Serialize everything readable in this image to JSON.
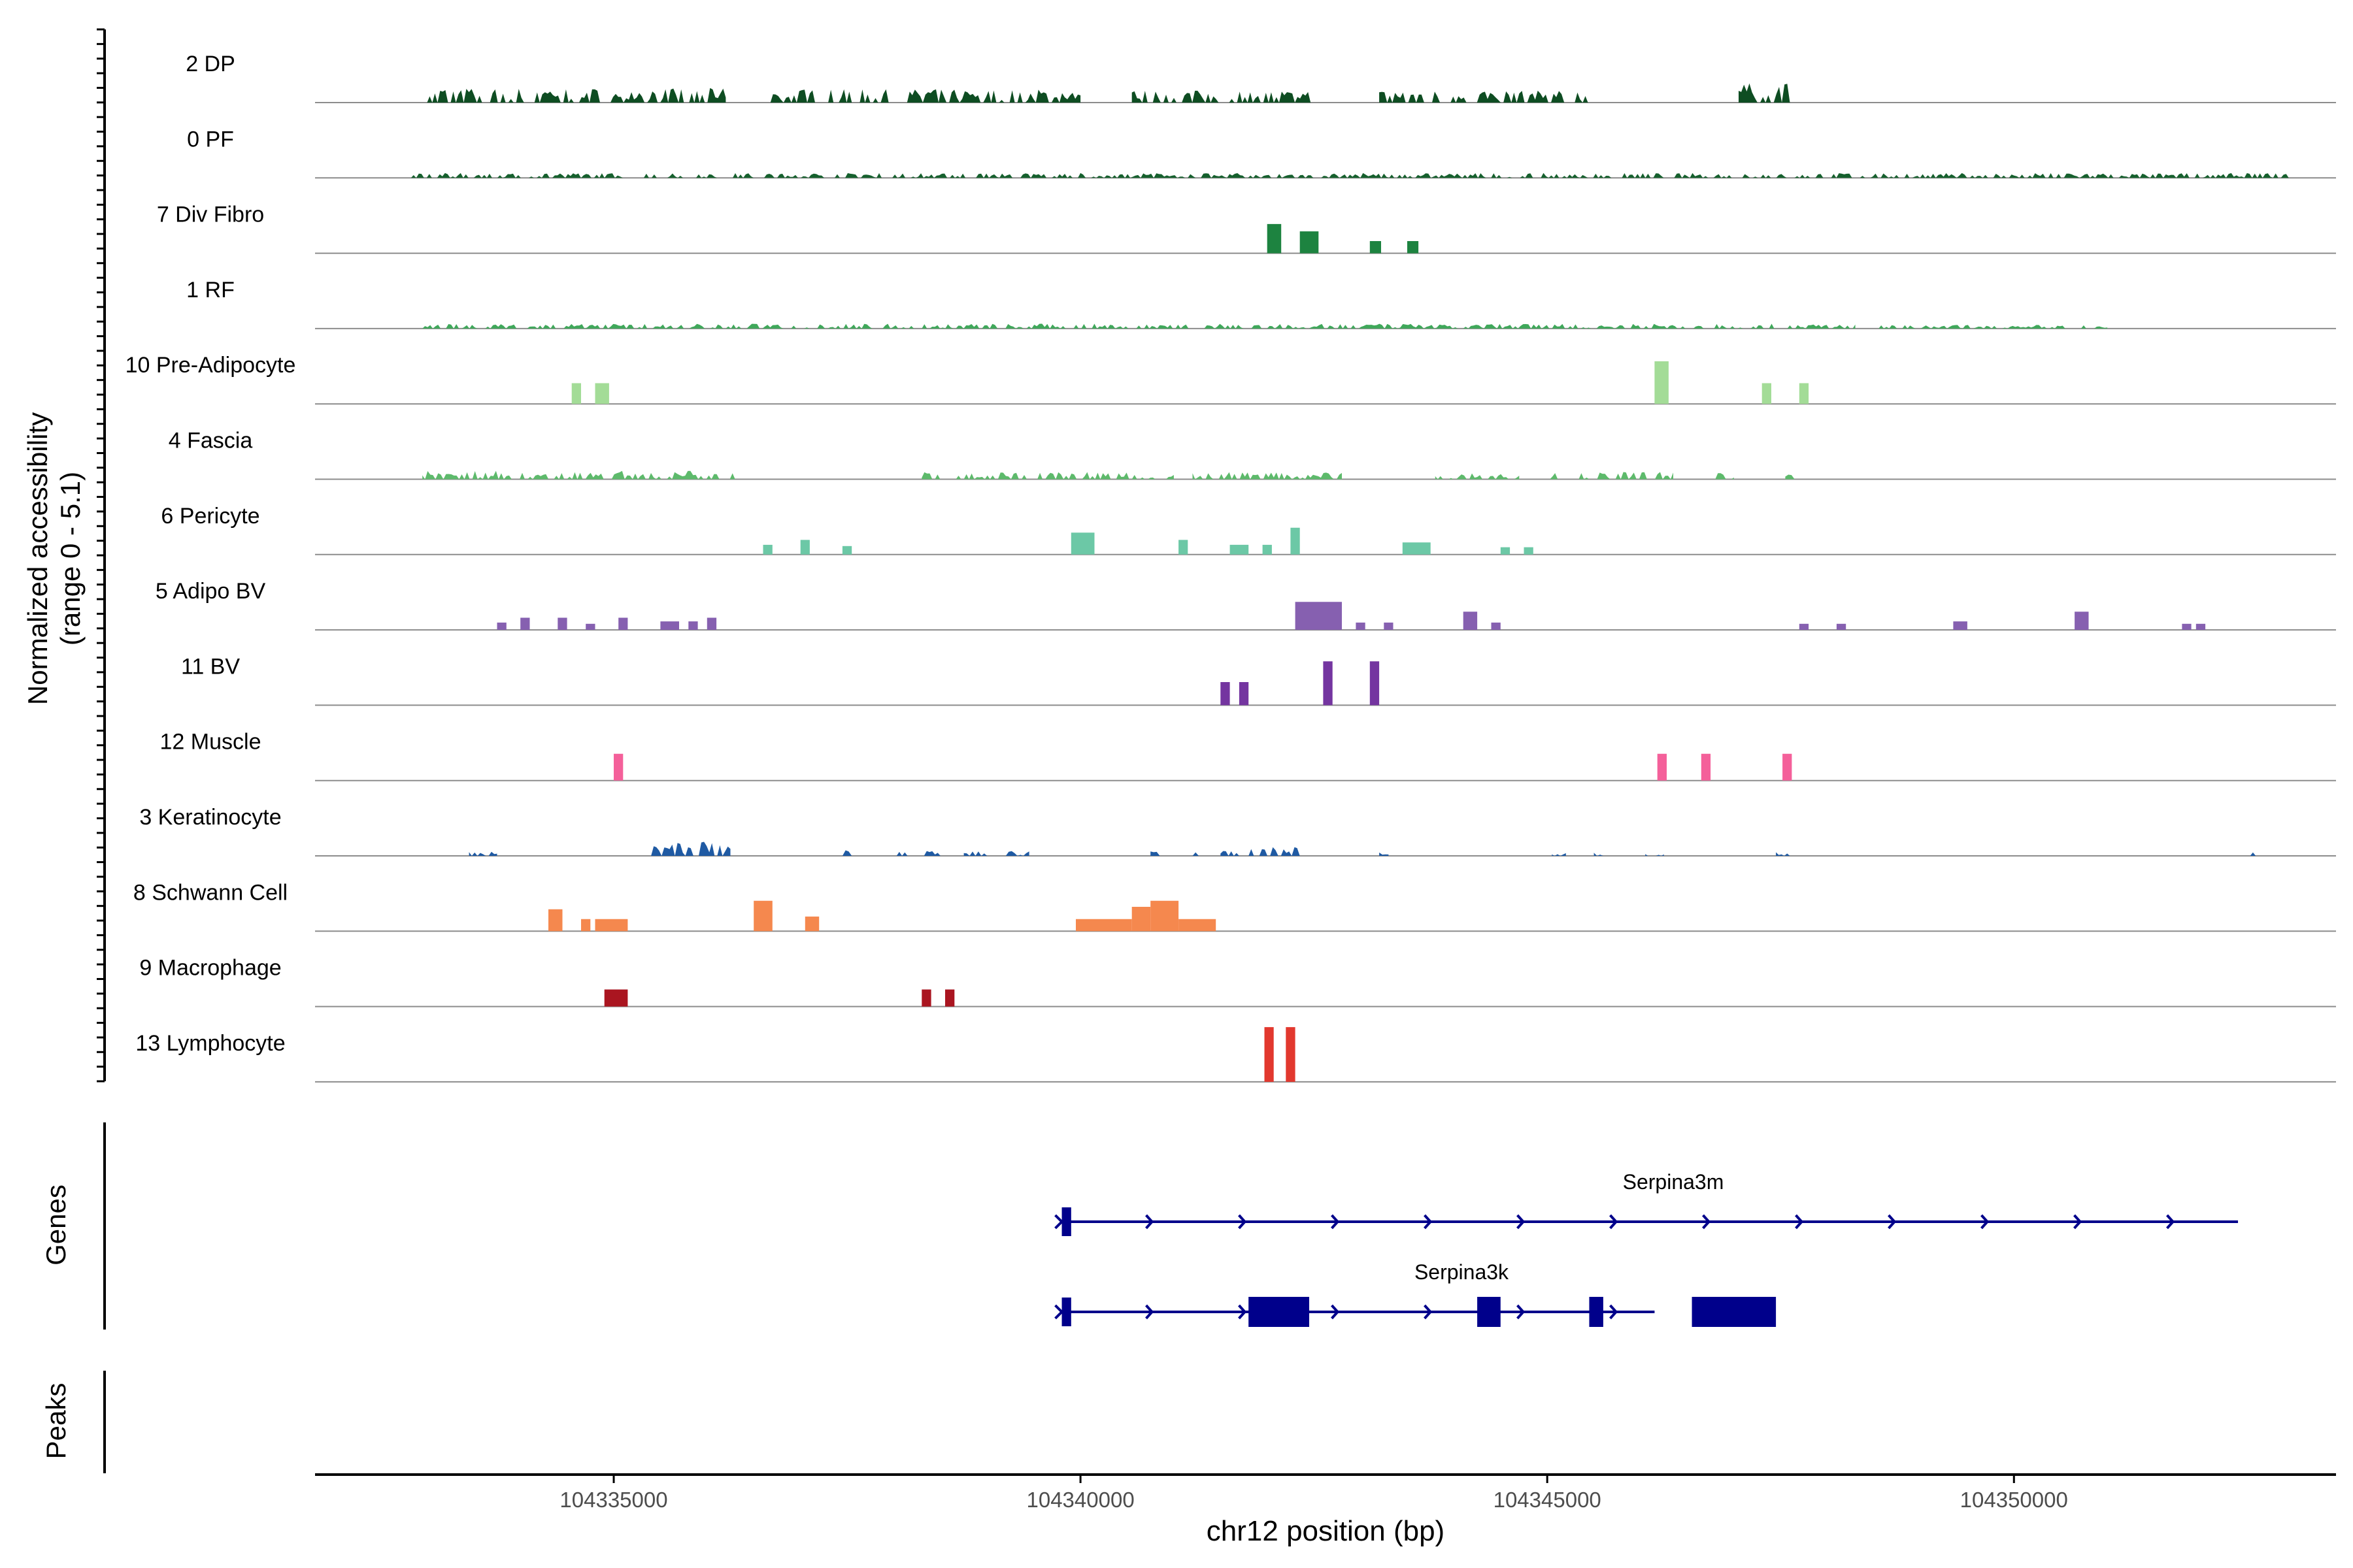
{
  "chart_data": {
    "type": "area",
    "title": "",
    "chromosome": "chr12",
    "xlabel": "chr12 position (bp)",
    "ylabel_line1": "Normalized accessibility",
    "ylabel_line2": "(range 0 - 5.1)",
    "y_range": [
      0,
      5.1
    ],
    "x_range": [
      104331800,
      104353450
    ],
    "x_ticks": [
      104335000,
      104340000,
      104345000,
      104350000
    ],
    "x_tick_labels": [
      "104335000",
      "104340000",
      "104345000",
      "104350000"
    ],
    "panel_labels": {
      "genes": "Genes",
      "peaks": "Peaks"
    },
    "tracks": [
      {
        "name": "2 DP",
        "color": "#0e4d22",
        "kind": "dense",
        "segments": [
          [
            104333000,
            104336200,
            1.2
          ],
          [
            104336650,
            104340000,
            1.1
          ],
          [
            104340550,
            104342550,
            1.0
          ],
          [
            104343200,
            104345550,
            1.0
          ],
          [
            104347050,
            104347600,
            1.6
          ]
        ]
      },
      {
        "name": "0 PF",
        "color": "#15602d",
        "kind": "dense",
        "segments": [
          [
            104332800,
            104353000,
            0.4
          ]
        ]
      },
      {
        "name": "7 Div Fibro",
        "color": "#1d8340",
        "kind": "bars",
        "segments": [
          [
            104342000,
            104342150,
            2.4
          ],
          [
            104342350,
            104342550,
            1.8
          ],
          [
            104343100,
            104343220,
            1.0
          ],
          [
            104343500,
            104343620,
            1.0
          ]
        ]
      },
      {
        "name": "1 RF",
        "color": "#3fa85a",
        "kind": "dense",
        "segments": [
          [
            104332950,
            104348300,
            0.4
          ],
          [
            104348550,
            104351000,
            0.3
          ]
        ]
      },
      {
        "name": "10 Pre-Adipocyte",
        "color": "#a3dc97",
        "kind": "bars",
        "segments": [
          [
            104334550,
            104334650,
            1.7
          ],
          [
            104334800,
            104334950,
            1.7
          ],
          [
            104346150,
            104346300,
            3.5
          ],
          [
            104347300,
            104347400,
            1.7
          ],
          [
            104347700,
            104347800,
            1.7
          ]
        ]
      },
      {
        "name": "4 Fascia",
        "color": "#5dba6b",
        "kind": "dense",
        "segments": [
          [
            104332950,
            104336300,
            0.7
          ],
          [
            104338300,
            104341000,
            0.6
          ],
          [
            104341200,
            104342800,
            0.6
          ],
          [
            104343800,
            104344700,
            0.5
          ],
          [
            104345000,
            104346350,
            0.6
          ],
          [
            104346800,
            104347000,
            0.5
          ],
          [
            104347550,
            104347650,
            0.5
          ]
        ]
      },
      {
        "name": "6 Pericyte",
        "color": "#6cc8a6",
        "kind": "bars",
        "segments": [
          [
            104336600,
            104336700,
            0.8
          ],
          [
            104337000,
            104337100,
            1.2
          ],
          [
            104337450,
            104337550,
            0.7
          ],
          [
            104339900,
            104340150,
            1.8
          ],
          [
            104341050,
            104341150,
            1.2
          ],
          [
            104341600,
            104341800,
            0.8
          ],
          [
            104341950,
            104342050,
            0.8
          ],
          [
            104342250,
            104342350,
            2.2
          ],
          [
            104343450,
            104343750,
            1.0
          ],
          [
            104344500,
            104344600,
            0.6
          ],
          [
            104344750,
            104344850,
            0.6
          ]
        ]
      },
      {
        "name": "5 Adipo BV",
        "color": "#8660b0",
        "kind": "bars",
        "segments": [
          [
            104333750,
            104333850,
            0.6
          ],
          [
            104334000,
            104334100,
            1.0
          ],
          [
            104334400,
            104334500,
            1.0
          ],
          [
            104334700,
            104334800,
            0.5
          ],
          [
            104335050,
            104335150,
            1.0
          ],
          [
            104335500,
            104335700,
            0.7
          ],
          [
            104335800,
            104335900,
            0.7
          ],
          [
            104336000,
            104336100,
            1.0
          ],
          [
            104342300,
            104342800,
            2.3
          ],
          [
            104342950,
            104343050,
            0.6
          ],
          [
            104343250,
            104343350,
            0.6
          ],
          [
            104344100,
            104344250,
            1.5
          ],
          [
            104344400,
            104344500,
            0.6
          ],
          [
            104347700,
            104347800,
            0.5
          ],
          [
            104348100,
            104348200,
            0.5
          ],
          [
            104349350,
            104349500,
            0.7
          ],
          [
            104350650,
            104350800,
            1.5
          ],
          [
            104351800,
            104351900,
            0.5
          ],
          [
            104351950,
            104352050,
            0.5
          ]
        ]
      },
      {
        "name": "11 BV",
        "color": "#7435a0",
        "kind": "bars",
        "segments": [
          [
            104341500,
            104341600,
            1.9
          ],
          [
            104341700,
            104341800,
            1.9
          ],
          [
            104342600,
            104342700,
            3.6
          ],
          [
            104343100,
            104343200,
            3.6
          ]
        ]
      },
      {
        "name": "12 Muscle",
        "color": "#f4609a",
        "kind": "bars",
        "segments": [
          [
            104335000,
            104335100,
            2.2
          ],
          [
            104346180,
            104346280,
            2.2
          ],
          [
            104346650,
            104346750,
            2.2
          ],
          [
            104347520,
            104347620,
            2.2
          ]
        ]
      },
      {
        "name": "3 Keratinocyte",
        "color": "#1f5aa3",
        "kind": "dense",
        "segments": [
          [
            104333000,
            104333150,
            0.4
          ],
          [
            104333450,
            104333750,
            0.4
          ],
          [
            104335400,
            104336250,
            1.2
          ],
          [
            104337450,
            104337550,
            0.5
          ],
          [
            104338000,
            104338500,
            0.4
          ],
          [
            104338750,
            104339000,
            0.4
          ],
          [
            104339200,
            104339450,
            0.4
          ],
          [
            104340750,
            104340850,
            0.5
          ],
          [
            104341200,
            104341300,
            0.4
          ],
          [
            104341500,
            104341700,
            0.4
          ],
          [
            104341800,
            104342350,
            0.8
          ],
          [
            104343200,
            104343300,
            0.3
          ],
          [
            104345050,
            104345200,
            0.3
          ],
          [
            104345500,
            104345600,
            0.3
          ],
          [
            104346050,
            104346250,
            0.3
          ],
          [
            104347450,
            104347600,
            0.3
          ],
          [
            104352500,
            104352650,
            0.3
          ]
        ]
      },
      {
        "name": "8 Schwann Cell",
        "color": "#f5884e",
        "kind": "bars",
        "segments": [
          [
            104334300,
            104334450,
            1.8
          ],
          [
            104334650,
            104334750,
            1.0
          ],
          [
            104334800,
            104335150,
            1.0
          ],
          [
            104336500,
            104336700,
            2.5
          ],
          [
            104337050,
            104337200,
            1.2
          ],
          [
            104339950,
            104340550,
            1.0
          ],
          [
            104340550,
            104340750,
            2.0
          ],
          [
            104340750,
            104341050,
            2.5
          ],
          [
            104341050,
            104341450,
            1.0
          ]
        ]
      },
      {
        "name": "9 Macrophage",
        "color": "#aa1520",
        "kind": "bars",
        "segments": [
          [
            104334900,
            104335150,
            1.4
          ],
          [
            104338300,
            104338400,
            1.4
          ],
          [
            104338550,
            104338650,
            1.4
          ]
        ]
      },
      {
        "name": "13 Lymphocyte",
        "color": "#e2382e",
        "kind": "bars",
        "segments": [
          [
            104341970,
            104342070,
            4.5
          ],
          [
            104342200,
            104342300,
            4.5
          ]
        ]
      }
    ],
    "genes": [
      {
        "name": "Serpina3m",
        "color": "#00008b",
        "start": 104339800,
        "end": 104352400,
        "exons": [
          [
            104339800,
            104339900
          ]
        ]
      },
      {
        "name": "Serpina3k",
        "color": "#00008b",
        "start": 104339800,
        "end": 104346150,
        "exons": [
          [
            104339800,
            104339900
          ],
          [
            104341800,
            104342450
          ],
          [
            104344250,
            104344500
          ],
          [
            104345450,
            104345600
          ],
          [
            104346550,
            104347450
          ]
        ]
      }
    ]
  }
}
